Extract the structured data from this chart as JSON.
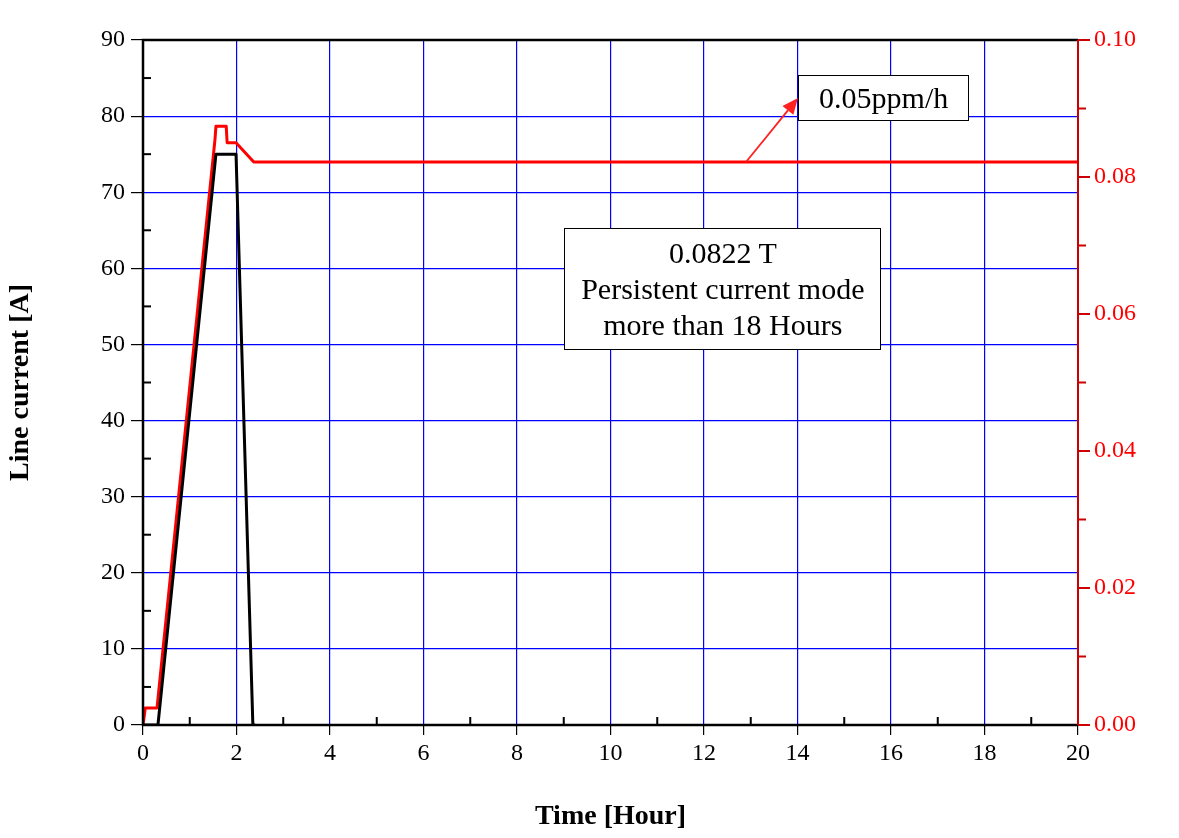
{
  "chart_data": {
    "type": "line",
    "xlabel": "Time [Hour]",
    "ylabel": "Line current [A]",
    "xlim": [
      0,
      20
    ],
    "xticks": [
      0,
      2,
      4,
      6,
      8,
      10,
      12,
      14,
      16,
      18,
      20
    ],
    "ylim": [
      0,
      90
    ],
    "yticks": [
      0,
      10,
      20,
      30,
      40,
      50,
      60,
      70,
      80,
      90
    ],
    "y2lim": [
      0,
      0.1
    ],
    "y2ticks": [
      {
        "value": 0,
        "label": "0.00"
      },
      {
        "value": 0.02,
        "label": "0.02"
      },
      {
        "value": 0.04,
        "label": "0.04"
      },
      {
        "value": 0.06,
        "label": "0.06"
      },
      {
        "value": 0.08,
        "label": "0.08"
      },
      {
        "value": 0.1,
        "label": "0.10"
      }
    ],
    "grid": true,
    "legend": false,
    "marker": "none",
    "line_style": "solid",
    "series": [
      {
        "color": "#000000",
        "x": [
          0,
          0.32,
          1.56,
          1.99,
          2.35,
          2.4
        ],
        "values": [
          0,
          0,
          75,
          75,
          0,
          0
        ]
      },
      {
        "color": "#ff0000",
        "axis": "y2",
        "x": [
          0,
          0.05,
          0.3,
          1.54,
          1.56,
          1.78,
          1.8,
          1.99,
          2.37,
          20
        ],
        "values": [
          0,
          0.0025,
          0.0025,
          0.0855,
          0.0874,
          0.0874,
          0.085,
          0.085,
          0.0822,
          0.0822
        ]
      }
    ],
    "annotations": [
      {
        "text": "0.05ppm/h",
        "x": 12.9,
        "y": 74
      },
      "0.0822 T\nPersistent current mode\nmore than 18 Hours"
    ]
  }
}
